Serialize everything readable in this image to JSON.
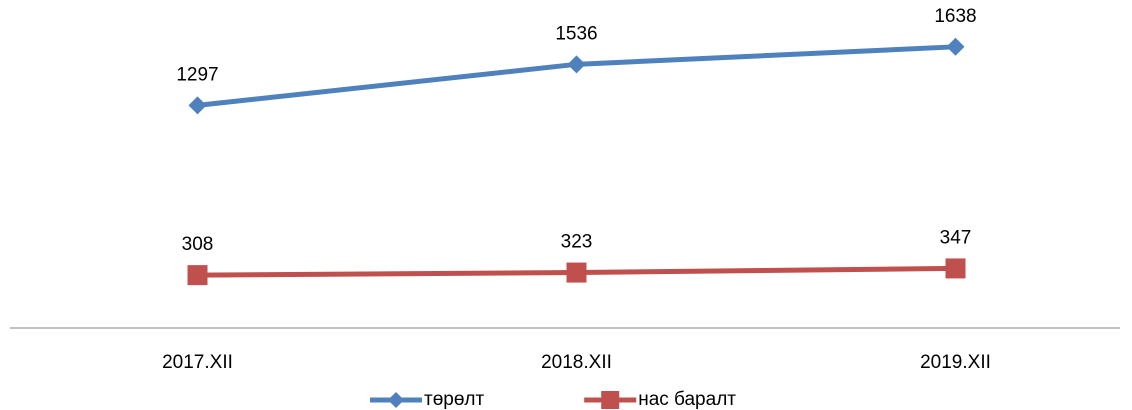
{
  "chart_data": {
    "type": "line",
    "categories": [
      "2017.XII",
      "2018.XII",
      "2019.XII"
    ],
    "series": [
      {
        "name": "төрөлт",
        "color": "#4f81bd",
        "marker": "diamond",
        "values": [
          1297,
          1536,
          1638
        ]
      },
      {
        "name": "нас баралт",
        "color": "#c0504d",
        "marker": "square",
        "values": [
          308,
          323,
          347
        ]
      }
    ],
    "ylim": [
      0,
      1800
    ],
    "data_labels": true,
    "legend": "bottom"
  }
}
